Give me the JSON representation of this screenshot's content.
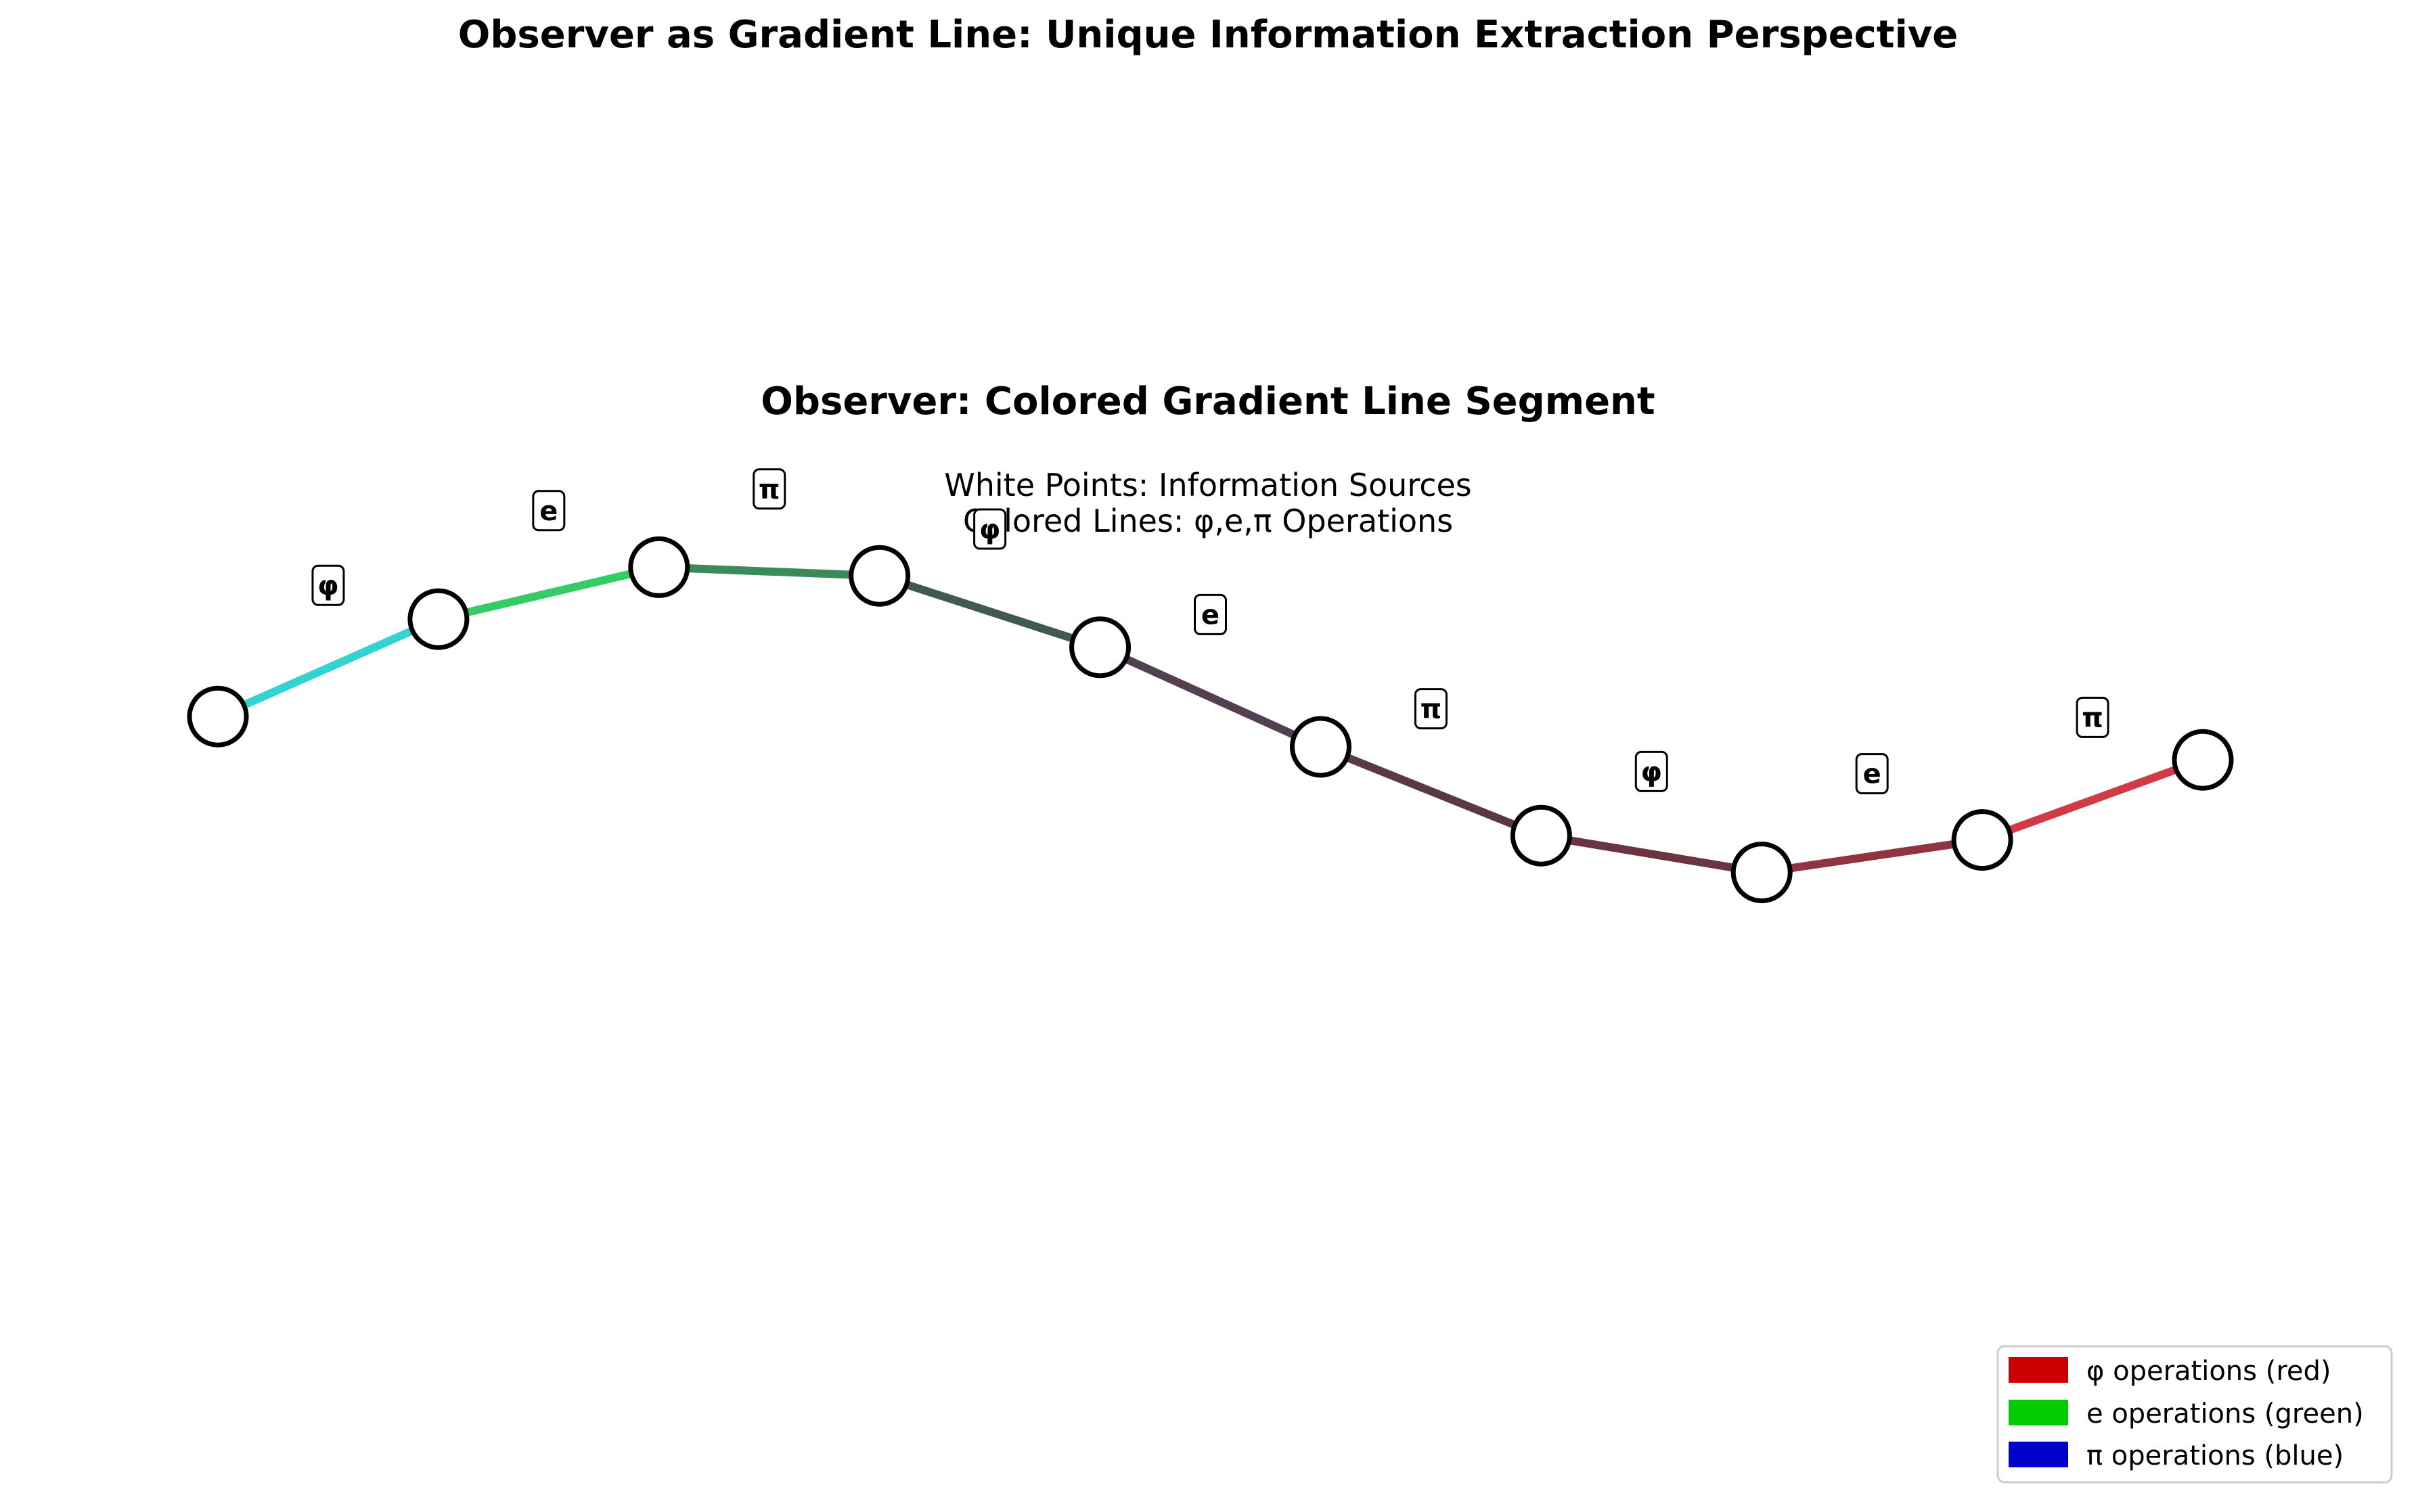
{
  "figure": {
    "suptitle": "Observer as Gradient Line: Unique Information Extraction Perspective",
    "title": "Observer: Colored Gradient Line Segment",
    "subtitle_lines": [
      "White Points: Information Sources",
      "Colored Lines: φ,e,π Operations"
    ]
  },
  "chart_data": {
    "type": "line",
    "title": "Observer: Colored Gradient Line Segment",
    "axes_visible": false,
    "grid": false,
    "x": [
      0,
      1,
      2,
      3,
      4,
      5,
      6,
      7,
      8,
      9
    ],
    "y": [
      -0.31,
      0.14,
      0.38,
      0.34,
      0.01,
      -0.45,
      -0.86,
      -1.03,
      -0.88,
      -0.51
    ],
    "ylim": [
      -3.0,
      3.0
    ],
    "point_style": {
      "fill": "#ffffff",
      "edge": "#000000"
    },
    "segments": [
      {
        "label": "φ",
        "color": "#33d3d3"
      },
      {
        "label": "e",
        "color": "#33cc66"
      },
      {
        "label": "π",
        "color": "#3a8a5a"
      },
      {
        "label": "φ",
        "color": "#405a4f"
      },
      {
        "label": "e",
        "color": "#523f4f"
      },
      {
        "label": "π",
        "color": "#5a3848"
      },
      {
        "label": "φ",
        "color": "#6a3441"
      },
      {
        "label": "e",
        "color": "#8f3440"
      },
      {
        "label": "π",
        "color": "#d13a47"
      }
    ],
    "legend": {
      "placement": "lower-right",
      "entries": [
        {
          "label": "φ operations (red)",
          "color": "#cc0000"
        },
        {
          "label": "e operations (green)",
          "color": "#00cc00"
        },
        {
          "label": "π operations (blue)",
          "color": "#0000cc"
        }
      ]
    }
  }
}
